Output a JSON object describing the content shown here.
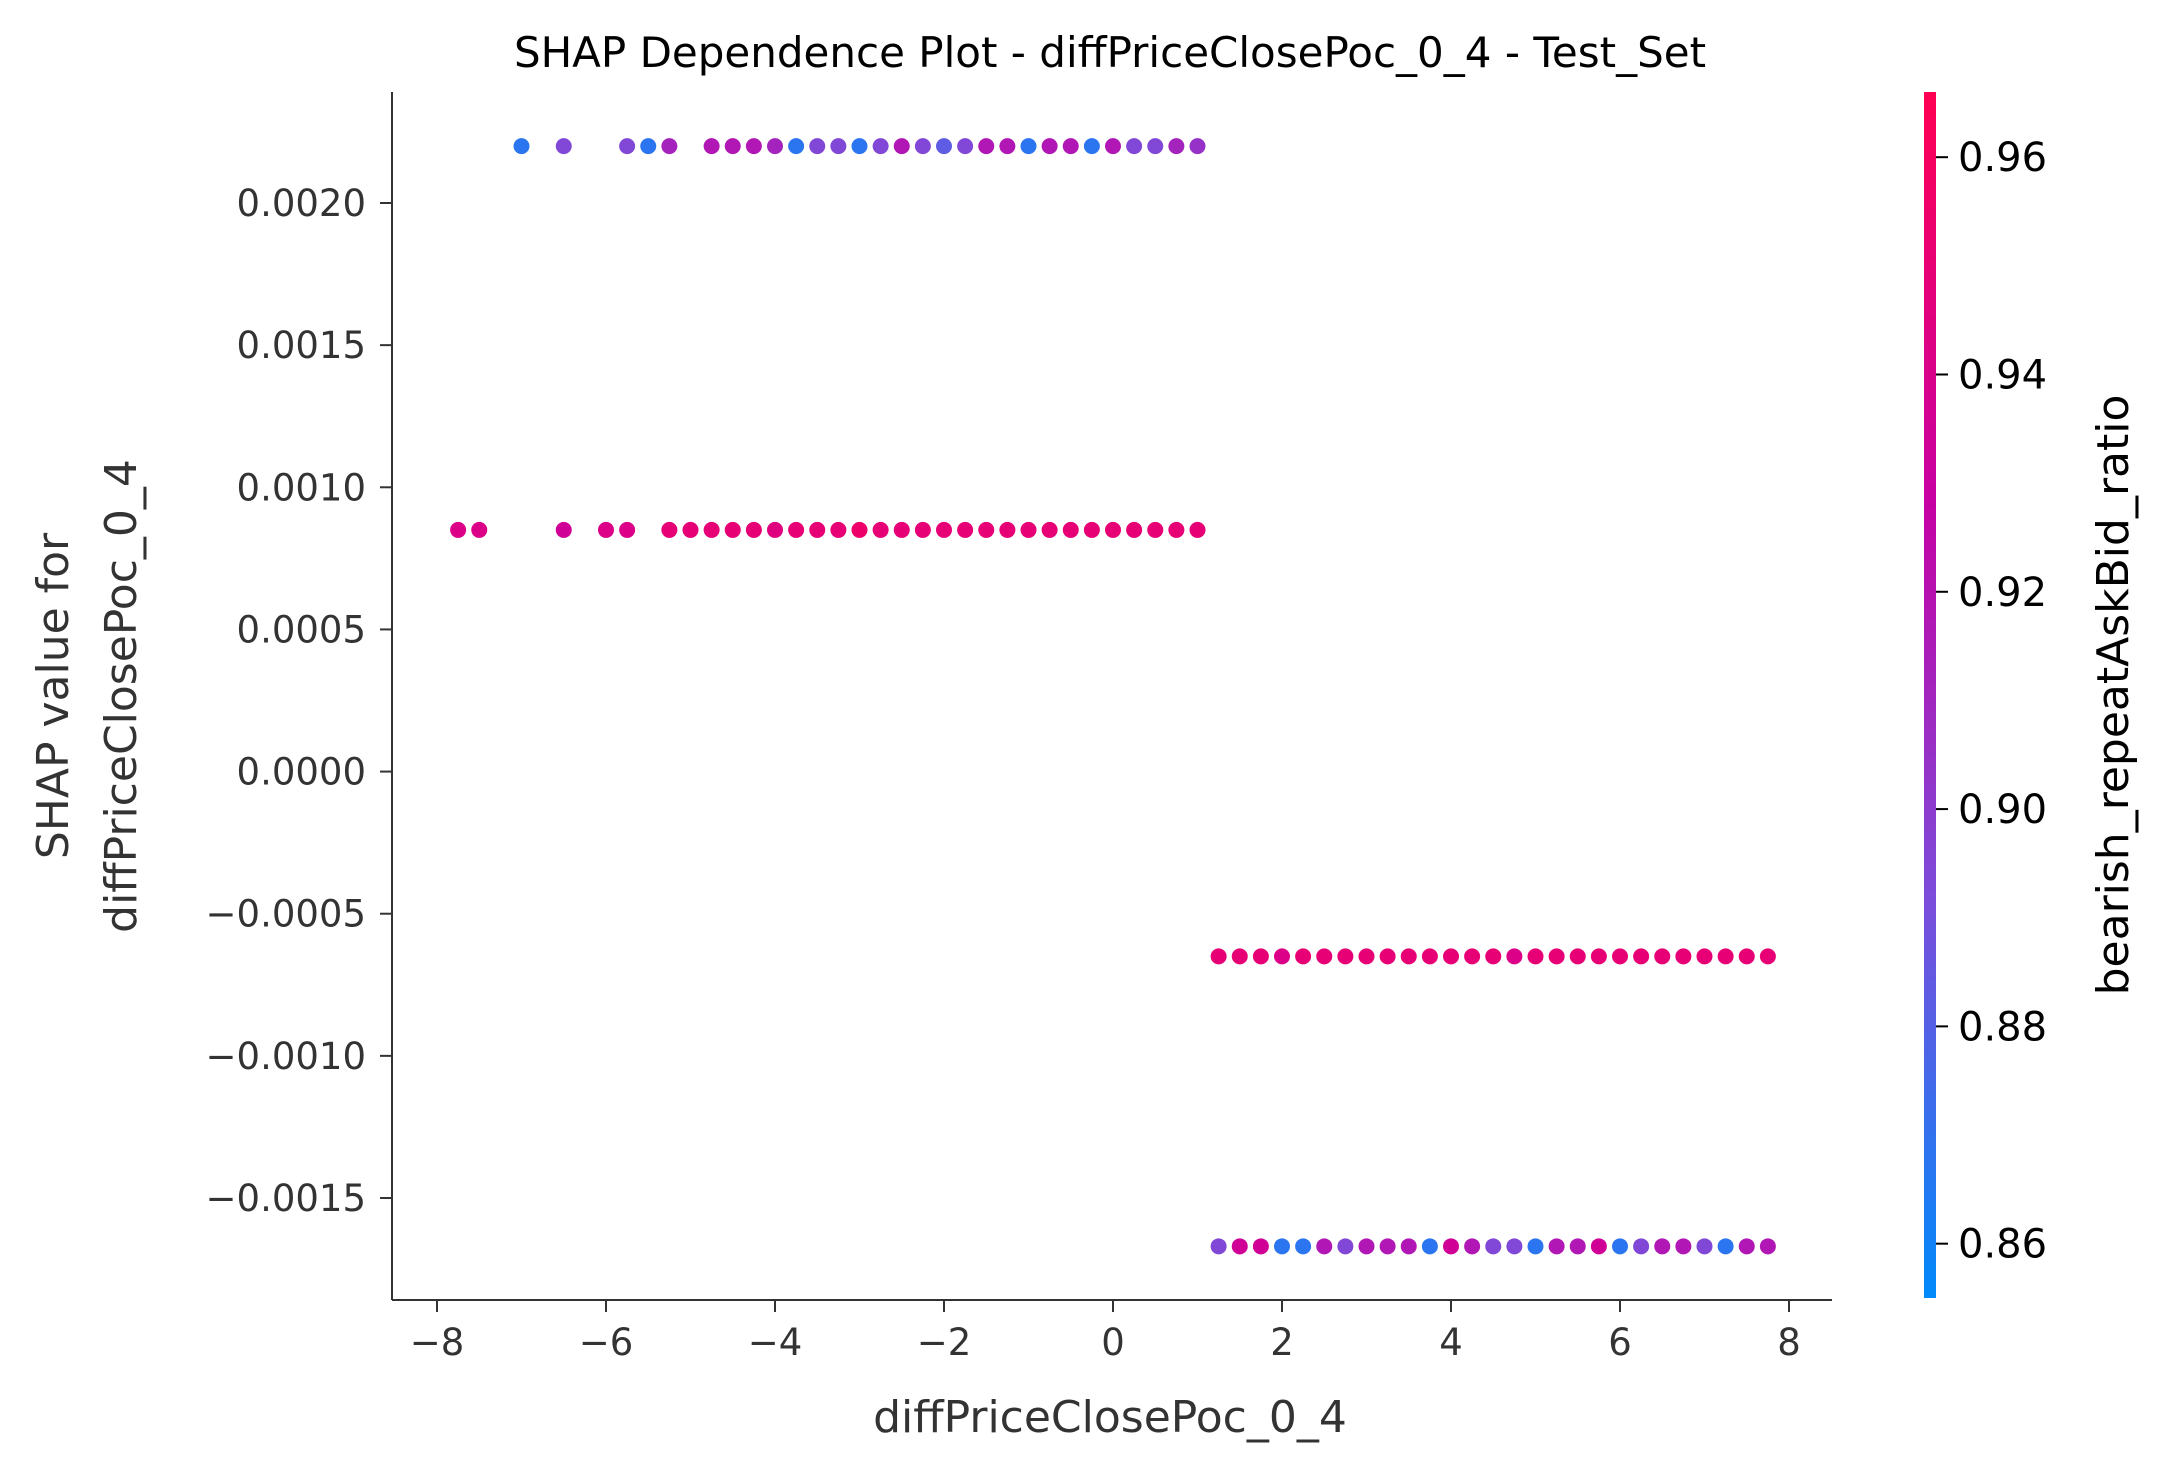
{
  "chart_data": {
    "type": "scatter",
    "title": "SHAP Dependence Plot - diffPriceClosePoc_0_4 - Test_Set",
    "xlabel": "diffPriceClosePoc_0_4",
    "ylabel_lines": [
      "SHAP value for",
      "diffPriceClosePoc_0_4"
    ],
    "xlim": [
      -8.5,
      8.5
    ],
    "ylim": [
      -0.00185,
      0.0023
    ],
    "x_ticks": [
      -8,
      -6,
      -4,
      -2,
      0,
      2,
      4,
      6,
      8
    ],
    "x_tick_labels": [
      "−8",
      "−6",
      "−4",
      "−2",
      "0",
      "2",
      "4",
      "6",
      "8"
    ],
    "y_ticks": [
      0.002,
      0.0015,
      0.001,
      0.0005,
      0.0,
      -0.0005,
      -0.001,
      -0.0015
    ],
    "y_tick_labels": [
      "0.0020",
      "0.0015",
      "0.0010",
      "0.0005",
      "0.0000",
      "−0.0005",
      "−0.0010",
      "−0.0015"
    ],
    "grid": false,
    "colorbar": {
      "label": "bearish_repeatAskBid_ratio",
      "range": [
        0.855,
        0.966
      ],
      "ticks": [
        0.86,
        0.88,
        0.9,
        0.92,
        0.94,
        0.96
      ],
      "tick_labels": [
        "0.86",
        "0.88",
        "0.90",
        "0.92",
        "0.94",
        "0.96"
      ],
      "colors": [
        "#008afb",
        "#7b4ddb",
        "#c700a3",
        "#ff0052"
      ]
    },
    "series": [
      {
        "y": 0.0022,
        "points": [
          [
            -7.0,
            0.868
          ],
          [
            -6.5,
            0.895
          ],
          [
            -5.75,
            0.895
          ],
          [
            -5.5,
            0.868
          ],
          [
            -5.25,
            0.912
          ],
          [
            -4.75,
            0.918
          ],
          [
            -4.5,
            0.918
          ],
          [
            -4.25,
            0.918
          ],
          [
            -4.0,
            0.912
          ],
          [
            -3.75,
            0.868
          ],
          [
            -3.5,
            0.895
          ],
          [
            -3.25,
            0.895
          ],
          [
            -3.0,
            0.868
          ],
          [
            -2.75,
            0.895
          ],
          [
            -2.5,
            0.918
          ],
          [
            -2.25,
            0.895
          ],
          [
            -2.0,
            0.883
          ],
          [
            -1.75,
            0.895
          ],
          [
            -1.5,
            0.918
          ],
          [
            -1.25,
            0.918
          ],
          [
            -1.0,
            0.868
          ],
          [
            -0.75,
            0.918
          ],
          [
            -0.5,
            0.918
          ],
          [
            -0.25,
            0.868
          ],
          [
            0.0,
            0.918
          ],
          [
            0.25,
            0.895
          ],
          [
            0.5,
            0.895
          ],
          [
            0.75,
            0.912
          ],
          [
            1.0,
            0.905
          ]
        ]
      },
      {
        "y": 0.00085,
        "points": [
          [
            -7.75,
            0.942
          ],
          [
            -7.5,
            0.942
          ],
          [
            -6.5,
            0.935
          ],
          [
            -6.0,
            0.942
          ],
          [
            -5.75,
            0.942
          ],
          [
            -5.25,
            0.95
          ],
          [
            -5.0,
            0.95
          ],
          [
            -4.75,
            0.95
          ],
          [
            -4.5,
            0.95
          ],
          [
            -4.25,
            0.95
          ],
          [
            -4.0,
            0.945
          ],
          [
            -3.75,
            0.95
          ],
          [
            -3.5,
            0.95
          ],
          [
            -3.25,
            0.95
          ],
          [
            -3.0,
            0.955
          ],
          [
            -2.75,
            0.95
          ],
          [
            -2.5,
            0.95
          ],
          [
            -2.25,
            0.95
          ],
          [
            -2.0,
            0.95
          ],
          [
            -1.75,
            0.95
          ],
          [
            -1.5,
            0.95
          ],
          [
            -1.25,
            0.95
          ],
          [
            -1.0,
            0.95
          ],
          [
            -0.75,
            0.95
          ],
          [
            -0.5,
            0.95
          ],
          [
            -0.25,
            0.95
          ],
          [
            0.0,
            0.95
          ],
          [
            0.25,
            0.95
          ],
          [
            0.5,
            0.95
          ],
          [
            0.75,
            0.95
          ],
          [
            1.0,
            0.95
          ]
        ]
      },
      {
        "y": -0.00065,
        "points": [
          [
            1.25,
            0.95
          ],
          [
            1.5,
            0.95
          ],
          [
            1.75,
            0.95
          ],
          [
            2.0,
            0.942
          ],
          [
            2.25,
            0.95
          ],
          [
            2.5,
            0.95
          ],
          [
            2.75,
            0.95
          ],
          [
            3.0,
            0.95
          ],
          [
            3.25,
            0.95
          ],
          [
            3.5,
            0.95
          ],
          [
            3.75,
            0.95
          ],
          [
            4.0,
            0.95
          ],
          [
            4.25,
            0.95
          ],
          [
            4.5,
            0.95
          ],
          [
            4.75,
            0.942
          ],
          [
            5.0,
            0.95
          ],
          [
            5.25,
            0.95
          ],
          [
            5.5,
            0.95
          ],
          [
            5.75,
            0.95
          ],
          [
            6.0,
            0.95
          ],
          [
            6.25,
            0.95
          ],
          [
            6.5,
            0.95
          ],
          [
            6.75,
            0.95
          ],
          [
            7.0,
            0.95
          ],
          [
            7.25,
            0.95
          ],
          [
            7.5,
            0.95
          ],
          [
            7.75,
            0.95
          ]
        ]
      },
      {
        "y": -0.00167,
        "points": [
          [
            1.25,
            0.895
          ],
          [
            1.5,
            0.935
          ],
          [
            1.75,
            0.935
          ],
          [
            2.0,
            0.868
          ],
          [
            2.25,
            0.868
          ],
          [
            2.5,
            0.918
          ],
          [
            2.75,
            0.895
          ],
          [
            3.0,
            0.918
          ],
          [
            3.25,
            0.918
          ],
          [
            3.5,
            0.918
          ],
          [
            3.75,
            0.868
          ],
          [
            4.0,
            0.935
          ],
          [
            4.25,
            0.918
          ],
          [
            4.5,
            0.895
          ],
          [
            4.75,
            0.895
          ],
          [
            5.0,
            0.868
          ],
          [
            5.25,
            0.918
          ],
          [
            5.5,
            0.918
          ],
          [
            5.75,
            0.935
          ],
          [
            6.0,
            0.868
          ],
          [
            6.25,
            0.895
          ],
          [
            6.5,
            0.918
          ],
          [
            6.75,
            0.918
          ],
          [
            7.0,
            0.895
          ],
          [
            7.25,
            0.868
          ],
          [
            7.5,
            0.918
          ],
          [
            7.75,
            0.918
          ]
        ]
      }
    ]
  }
}
